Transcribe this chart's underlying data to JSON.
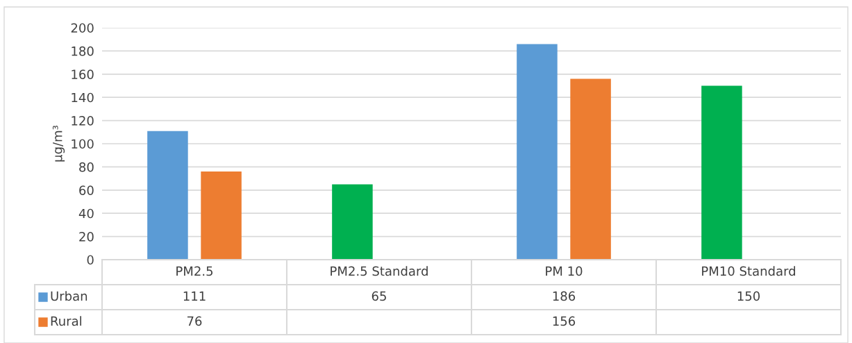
{
  "chart_data": {
    "type": "bar",
    "ylabel": "µg/m³",
    "categories": [
      "PM2.5",
      "PM2.5 Standard",
      "PM 10",
      "PM10 Standard"
    ],
    "series": [
      {
        "name": "Urban",
        "color": "#5b9bd5",
        "colors": [
          "#5b9bd5",
          "#00b050",
          "#5b9bd5",
          "#00b050"
        ],
        "values": [
          111,
          65,
          186,
          150
        ]
      },
      {
        "name": "Rural",
        "color": "#ed7d31",
        "values": [
          76,
          null,
          156,
          null
        ]
      }
    ],
    "ylim": [
      0,
      200
    ],
    "yticks": [
      0,
      20,
      40,
      60,
      80,
      100,
      120,
      140,
      160,
      180,
      200
    ],
    "grid": "y",
    "legend": "bottom",
    "data_labels": true
  }
}
